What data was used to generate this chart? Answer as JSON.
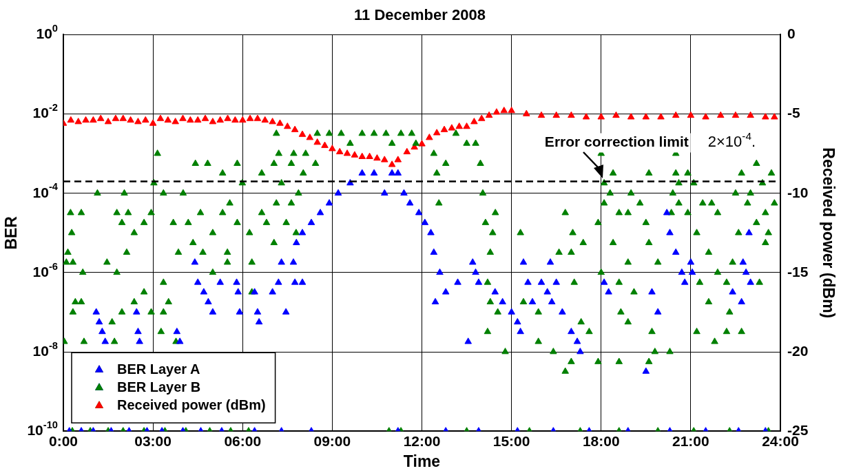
{
  "chart_data": {
    "type": "scatter",
    "title": "11 December 2008",
    "xlabel": "Time",
    "ylabel": "BER",
    "y2label": "Received power (dBm)",
    "xlim": [
      0,
      24
    ],
    "xticks": [
      {
        "value": 0,
        "label": "0:00"
      },
      {
        "value": 3,
        "label": "03:00"
      },
      {
        "value": 6,
        "label": "06:00"
      },
      {
        "value": 9,
        "label": "09:00"
      },
      {
        "value": 12,
        "label": "12:00"
      },
      {
        "value": 15,
        "label": "15:00"
      },
      {
        "value": 18,
        "label": "18:00"
      },
      {
        "value": 21,
        "label": "21:00"
      },
      {
        "value": 24,
        "label": "24:00"
      }
    ],
    "ylim": [
      1e-10,
      1
    ],
    "yticks": [
      {
        "value": 1e-10,
        "label": "10$^{-10}$"
      },
      {
        "value": 1e-08,
        "label": "10$^{-8}$"
      },
      {
        "value": 1e-06,
        "label": "10$^{-6}$"
      },
      {
        "value": 0.0001,
        "label": "10$^{-4}$"
      },
      {
        "value": 0.01,
        "label": "10$^{-2}$"
      },
      {
        "value": 1,
        "label": "10$^{0}$"
      }
    ],
    "y2lim": [
      -25,
      0
    ],
    "y2ticks": [
      -25,
      -20,
      -15,
      -10,
      -5,
      0
    ],
    "log": "y",
    "grid": true,
    "legend": "bottom left",
    "marker": "triangle",
    "ref_lines": [
      {
        "axis": "y",
        "value": 0.0002,
        "label": "Error correction limit",
        "color": "#000000",
        "line_style": "dashed"
      }
    ],
    "annotations": [
      "2×10$^{-4}$."
    ],
    "series": [
      {
        "name": "BER Layer A",
        "color": "#0000ff",
        "x": [
          0.2,
          0.6,
          1.0,
          1.6,
          2.2,
          2.8,
          3.3,
          4.0,
          4.6,
          5.3,
          6.4,
          7.3,
          8.3,
          11.2,
          12.8,
          13.9,
          15.2,
          16.4,
          17.6,
          18.9,
          20.3,
          21.5,
          22.6,
          23.5,
          1.1,
          1.2,
          1.3,
          1.4,
          2.45,
          2.5,
          2.55,
          3.8,
          3.9,
          4.4,
          4.5,
          4.7,
          4.85,
          5.0,
          5.25,
          5.8,
          5.85,
          5.9,
          6.4,
          6.5,
          6.55,
          7.0,
          7.2,
          7.3,
          7.45,
          7.7,
          7.75,
          8.0,
          7.8,
          8.0,
          8.3,
          8.6,
          8.9,
          9.2,
          9.6,
          10.0,
          10.4,
          10.75,
          11.0,
          11.2,
          11.4,
          11.6,
          11.9,
          12.1,
          12.3,
          12.4,
          12.6,
          12.8,
          12.45,
          13.2,
          13.7,
          13.8,
          13.9,
          13.55,
          14.45,
          14.7,
          15.0,
          15.2,
          15.3,
          15.4,
          15.55,
          15.7,
          16.0,
          16.2,
          16.35,
          16.3,
          16.5,
          16.7,
          17.0,
          17.2,
          17.3,
          18.1,
          18.25,
          19.5,
          19.7,
          19.9,
          20.2,
          20.3,
          20.5,
          20.7,
          20.8,
          21.0,
          21.05,
          22.4,
          22.7,
          22.75,
          22.85,
          23.0,
          22.95
        ],
        "values": [
          1e-10,
          1e-10,
          1e-10,
          1e-10,
          1e-10,
          1e-10,
          1e-10,
          1e-10,
          1e-10,
          1e-10,
          1e-10,
          1e-10,
          1e-10,
          1e-10,
          1e-10,
          1e-10,
          1e-10,
          1e-10,
          1e-10,
          1e-10,
          1e-10,
          1e-10,
          1e-10,
          1e-10,
          1e-07,
          5.6e-08,
          3.2e-08,
          1.8e-08,
          1e-07,
          3.2e-08,
          1.8e-08,
          3.2e-08,
          1.8e-08,
          1.8e-06,
          5.6e-07,
          3.2e-07,
          1.8e-07,
          1e-07,
          5.6e-07,
          5.6e-07,
          3.2e-07,
          1e-07,
          3.2e-07,
          1e-07,
          5.6e-08,
          3.2e-07,
          5.6e-07,
          1.8e-06,
          1e-07,
          1.8e-06,
          5.6e-07,
          5.6e-07,
          5.6e-06,
          1e-05,
          1.8e-05,
          3.2e-05,
          5.6e-05,
          0.0001,
          0.00018,
          0.00032,
          0.00032,
          0.0001,
          0.00032,
          0.00032,
          0.0001,
          5.6e-05,
          3.2e-05,
          1.8e-05,
          1e-05,
          3.2e-06,
          1e-06,
          3.2e-07,
          1.8e-07,
          5.6e-07,
          1.8e-06,
          1e-06,
          5.6e-07,
          1.8e-08,
          3.2e-07,
          1.8e-07,
          1e-07,
          5.6e-08,
          3.2e-08,
          1.8e-06,
          5.6e-07,
          1.8e-07,
          5.6e-07,
          3.2e-07,
          1.8e-07,
          1.8e-06,
          5.6e-07,
          1e-07,
          3.2e-08,
          1.8e-08,
          1e-08,
          5.6e-07,
          3.2e-07,
          3.2e-09,
          3.2e-07,
          1e-07,
          3.2e-05,
          1e-05,
          3.2e-06,
          1e-06,
          5.6e-07,
          1.8e-06,
          1e-06,
          3.2e-07,
          1.8e-07,
          1.8e-06,
          1e-06,
          5.6e-07,
          1e-05
        ]
      },
      {
        "name": "BER Layer B",
        "color": "#008000",
        "x": [
          0.3,
          0.9,
          1.5,
          2.0,
          2.7,
          3.4,
          4.1,
          4.9,
          5.6,
          6.2,
          10.9,
          11.3,
          13.5,
          15.6,
          17.3,
          18.6,
          19.9,
          21.1,
          22.3,
          23.6,
          0.24,
          0.6,
          1.14,
          0.28,
          0.15,
          0.32,
          0.1,
          0.65,
          0.4,
          0.32,
          0.6,
          0.03,
          0.69,
          2.04,
          2.17,
          1.79,
          1.96,
          1.46,
          1.79,
          2.12,
          2.37,
          2.7,
          2.94,
          3.03,
          3.15,
          3.35,
          3.68,
          4.01,
          4.42,
          4.83,
          4.59,
          4.18,
          3.85,
          3.35,
          3.52,
          2.7,
          2.94,
          3.35,
          3.27,
          3.77,
          2.37,
          1.96,
          1.63,
          1.71,
          4.34,
          4.67,
          5.0,
          5.33,
          5.33,
          5.82,
          5.99,
          5.57,
          5.82,
          5.49,
          5.0,
          5.49,
          6.31,
          6.23,
          6.64,
          6.64,
          7.05,
          7.3,
          7.13,
          6.8,
          7.05,
          7.46,
          7.63,
          7.87,
          7.79,
          8.03,
          7.63,
          7.21,
          7.71,
          8.11,
          8.44,
          7.13,
          6.31,
          8.5,
          8.9,
          9.3,
          9.6,
          10.0,
          10.4,
          10.8,
          11.0,
          11.3,
          11.66,
          11.8,
          13.14,
          13.5,
          13.8,
          12.4,
          12.8,
          12.5,
          12.57,
          13.96,
          14.04,
          14.13,
          14.46,
          14.37,
          14.29,
          14.2,
          14.29,
          14.54,
          14.2,
          14.79,
          15.3,
          15.4,
          15.9,
          15.9,
          16.4,
          16.59,
          16.8,
          17.05,
          17.4,
          17.0,
          17.1,
          17.33,
          17.6,
          18.0,
          18.1,
          18.4,
          18.1,
          18.3,
          17.9,
          18.6,
          18.9,
          19.0,
          19.3,
          18.4,
          18.9,
          18.0,
          18.6,
          19.1,
          18.66,
          18.9,
          19.6,
          19.5,
          19.6,
          19.9,
          19.7,
          19.8,
          20.3,
          20.5,
          20.5,
          20.9,
          20.6,
          21.1,
          20.4,
          20.6,
          20.9,
          20.35,
          21.2,
          21.4,
          21.7,
          21.9,
          21.6,
          21.9,
          21.3,
          21.6,
          21.2,
          21.8,
          22.2,
          22.7,
          22.3,
          22.2,
          22.4,
          22.6,
          22.5,
          22.7,
          23.2,
          23.7,
          23.4,
          22.9,
          23.5,
          23.8,
          23.2,
          23.6,
          23.5,
          23.3,
          23.0,
          17.0,
          16.8,
          18.6,
          19.6,
          17.9
        ],
        "values": [
          1e-10,
          1e-10,
          1e-10,
          1e-10,
          1e-10,
          1e-10,
          1e-10,
          1e-10,
          1e-10,
          1e-10,
          1e-10,
          1e-10,
          1e-10,
          1e-10,
          1e-10,
          1e-10,
          1e-10,
          1e-10,
          1e-10,
          1e-10,
          3.2e-05,
          3.2e-05,
          0.0001,
          1e-05,
          3.2e-06,
          1.8e-06,
          1.8e-06,
          1e-06,
          1.8e-07,
          1e-07,
          1.8e-07,
          1.8e-08,
          1.8e-08,
          0.0001,
          3.2e-05,
          3.2e-05,
          1.8e-05,
          1.8e-06,
          1e-06,
          3.2e-06,
          1e-05,
          1.8e-05,
          3.2e-05,
          0.00018,
          0.001,
          0.0001,
          1.8e-05,
          0.0001,
          0.00056,
          0.00056,
          3.2e-05,
          1.8e-05,
          3.2e-06,
          5.6e-07,
          1.8e-07,
          3.2e-07,
          1e-07,
          1e-07,
          3.2e-08,
          1.8e-08,
          1.8e-07,
          1e-07,
          5.6e-08,
          1.8e-08,
          5.6e-06,
          3.2e-06,
          1e-05,
          3.2e-05,
          0.00032,
          0.00056,
          0.00018,
          5.6e-05,
          1.8e-05,
          3.2e-06,
          1e-06,
          1.8e-06,
          1.8e-06,
          1e-05,
          3.2e-05,
          0.00032,
          0.00056,
          0.00018,
          5.6e-05,
          1.8e-05,
          5.6e-06,
          1.8e-05,
          5.6e-05,
          0.0001,
          1e-05,
          0.00032,
          0.00056,
          0.001,
          0.001,
          0.001,
          0.00056,
          0.0032,
          3.2e-07,
          0.0032,
          0.0032,
          0.0032,
          0.0018,
          0.0032,
          0.0032,
          0.0032,
          0.0018,
          0.0032,
          0.0032,
          0.0018,
          0.0032,
          0.0018,
          0.0018,
          0.001,
          0.00056,
          0.00032,
          5.6e-05,
          0.00056,
          0.0001,
          1.8e-05,
          3.2e-05,
          1e-05,
          3.2e-06,
          5.6e-07,
          1.8e-07,
          1e-07,
          3.2e-08,
          1e-08,
          1e-05,
          1.8e-07,
          1e-07,
          1.8e-08,
          1e-08,
          3.2e-06,
          3.2e-05,
          1e-05,
          5.6e-06,
          3.2e-06,
          5.6e-07,
          5.6e-08,
          3.2e-08,
          0.001,
          0.00018,
          0.00032,
          5.6e-05,
          0.0001,
          1.8e-05,
          3.2e-05,
          3.2e-05,
          0.0001,
          5.6e-05,
          5.6e-06,
          1.8e-06,
          1e-06,
          5.6e-07,
          3.2e-07,
          1e-07,
          5.6e-08,
          0.00032,
          1.8e-05,
          5.6e-06,
          1.8e-06,
          3.2e-08,
          1e-08,
          1e-08,
          0.001,
          0.00032,
          0.00032,
          0.00018,
          0.00018,
          0.0001,
          5.6e-05,
          3.2e-05,
          3.2e-05,
          1e-05,
          5.6e-05,
          5.6e-05,
          3.2e-05,
          3.2e-06,
          1e-06,
          5.6e-07,
          1.8e-07,
          3.2e-08,
          1.8e-08,
          3.2e-08,
          3.2e-08,
          1e-07,
          5.6e-07,
          1.8e-06,
          1e-05,
          0.0001,
          0.00032,
          0.00056,
          0.00032,
          0.00018,
          5.6e-05,
          3.2e-05,
          5.6e-05,
          1.8e-05,
          1e-05,
          5.6e-06,
          5.6e-07,
          0.0001,
          5.6e-09,
          3.2e-09,
          5.6e-09,
          5.6e-09,
          5.6e-09
        ]
      },
      {
        "name": "Received power (dBm)",
        "color": "#ff0000",
        "axis": "y2",
        "x": [
          0,
          0.25,
          0.5,
          0.75,
          1,
          1.25,
          1.5,
          1.75,
          2,
          2.25,
          2.5,
          2.75,
          3,
          3.25,
          3.5,
          3.75,
          4,
          4.25,
          4.5,
          4.75,
          5,
          5.25,
          5.5,
          5.75,
          6,
          6.25,
          6.5,
          6.75,
          7,
          7.25,
          7.5,
          7.75,
          8,
          8.25,
          8.5,
          8.75,
          9,
          9.25,
          9.5,
          9.75,
          10,
          10.25,
          10.5,
          10.75,
          11,
          11.2,
          11.5,
          11.75,
          12,
          12.25,
          12.5,
          12.75,
          13,
          13.25,
          13.5,
          13.75,
          14,
          14.25,
          14.5,
          14.75,
          15,
          15.5,
          16,
          16.5,
          17,
          17.5,
          18,
          18.5,
          19,
          19.5,
          20,
          20.5,
          21,
          21.5,
          22,
          22.5,
          23,
          23.5,
          23.8
        ],
        "values": [
          -5.6,
          -5.4,
          -5.5,
          -5.4,
          -5.4,
          -5.3,
          -5.5,
          -5.3,
          -5.3,
          -5.4,
          -5.5,
          -5.4,
          -5.6,
          -5.3,
          -5.4,
          -5.5,
          -5.3,
          -5.4,
          -5.4,
          -5.3,
          -5.5,
          -5.4,
          -5.3,
          -5.4,
          -5.4,
          -5.3,
          -5.3,
          -5.4,
          -5.5,
          -5.6,
          -5.8,
          -6.0,
          -6.3,
          -6.5,
          -6.8,
          -7.0,
          -7.2,
          -7.4,
          -7.5,
          -7.6,
          -7.7,
          -7.7,
          -7.8,
          -7.9,
          -8.2,
          -7.9,
          -7.4,
          -7.1,
          -6.9,
          -6.5,
          -6.2,
          -6.0,
          -5.9,
          -5.8,
          -5.8,
          -5.5,
          -5.3,
          -5.1,
          -4.9,
          -4.8,
          -4.8,
          -5.0,
          -5.1,
          -5.1,
          -5.1,
          -5.2,
          -5.2,
          -5.1,
          -5.2,
          -5.2,
          -5.2,
          -5.1,
          -5.1,
          -5.2,
          -5.1,
          -5.1,
          -5.1,
          -5.2,
          -5.2
        ]
      }
    ]
  }
}
